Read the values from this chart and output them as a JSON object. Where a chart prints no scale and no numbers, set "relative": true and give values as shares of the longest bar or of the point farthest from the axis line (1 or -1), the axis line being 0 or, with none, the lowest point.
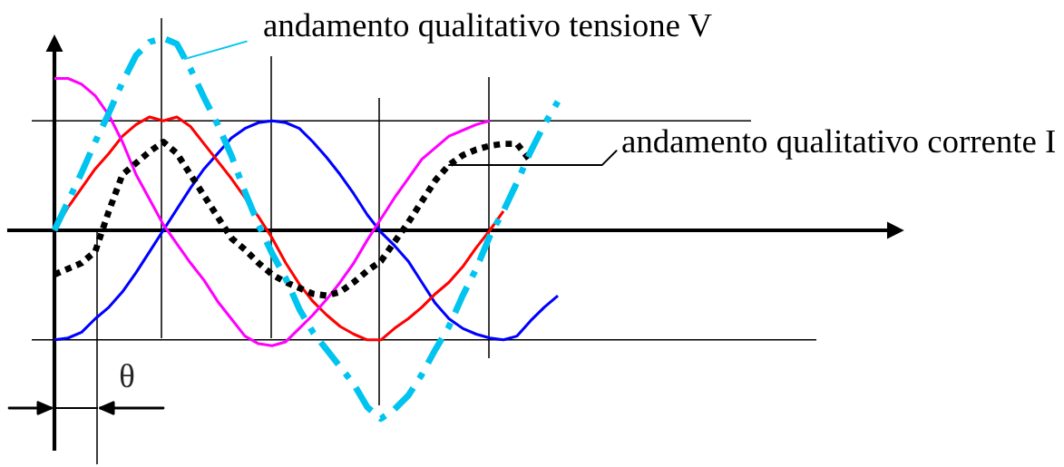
{
  "chart_data": {
    "type": "line",
    "relative": true,
    "grid": "x",
    "legend": "top right",
    "categories": [
      null,
      null,
      null,
      null,
      null,
      null,
      null,
      null,
      null,
      null,
      null,
      null,
      null,
      null,
      null,
      null,
      null,
      null,
      null,
      null,
      null,
      null,
      null,
      null,
      null,
      null,
      null,
      null,
      null,
      null,
      null,
      null,
      null,
      null,
      null,
      null,
      null,
      null
    ],
    "series": [
      {
        "color": "#0000ff",
        "line_style": "solid",
        "values": [
          -0.57,
          -0.56,
          -0.53,
          -0.46,
          -0.4,
          -0.32,
          -0.22,
          -0.11,
          0,
          0.11,
          0.22,
          0.32,
          0.4,
          0.48,
          0.53,
          0.56,
          0.57,
          0.56,
          0.53,
          0.46,
          0.38,
          0.29,
          0.19,
          0.08,
          -0.01,
          -0.08,
          -0.16,
          -0.27,
          -0.38,
          -0.46,
          -0.51,
          -0.54,
          -0.56,
          -0.57,
          -0.55,
          -0.47,
          -0.4,
          -0.34
        ]
      },
      {
        "color": "#ff0000",
        "line_style": "solid",
        "values": [
          0,
          0.12,
          0.22,
          0.32,
          0.4,
          0.49,
          0.55,
          0.59,
          0.57,
          0.59,
          0.54,
          0.45,
          0.36,
          0.27,
          0.17,
          0.07,
          -0.04,
          -0.17,
          -0.28,
          -0.37,
          -0.44,
          -0.5,
          -0.54,
          -0.57,
          -0.57,
          -0.51,
          -0.46,
          -0.4,
          -0.33,
          -0.27,
          -0.19,
          -0.09,
          0.0,
          0.1,
          null,
          null,
          null,
          null
        ]
      },
      {
        "color": "#ff00ff",
        "line_style": "solid",
        "values": [
          0.79,
          0.79,
          0.76,
          0.7,
          0.6,
          0.46,
          0.29,
          0.16,
          0.03,
          -0.07,
          -0.17,
          -0.26,
          -0.37,
          -0.46,
          -0.55,
          -0.59,
          -0.6,
          -0.58,
          -0.51,
          -0.44,
          -0.36,
          -0.27,
          -0.17,
          -0.05,
          0.06,
          0.17,
          0.27,
          0.37,
          0.43,
          0.49,
          0.52,
          0.55,
          0.57,
          null,
          null,
          null,
          null,
          null
        ]
      },
      {
        "name": "andamento qualitativo corrente I",
        "color": "#000000",
        "line_style": "dotted",
        "values": [
          -0.23,
          -0.2,
          -0.17,
          -0.11,
          0.1,
          0.29,
          0.35,
          0.41,
          0.46,
          0.4,
          0.29,
          0.18,
          0.07,
          -0.04,
          -0.1,
          -0.17,
          -0.23,
          -0.27,
          -0.3,
          -0.33,
          -0.34,
          -0.32,
          -0.27,
          -0.21,
          -0.16,
          -0.06,
          0.04,
          0.15,
          0.26,
          0.34,
          0.39,
          0.42,
          0.44,
          0.45,
          0.45,
          0.36,
          null,
          null
        ]
      },
      {
        "name": "andamento qualitativo tensione V",
        "color": "#00c4f0",
        "line_style": "dashdot",
        "values": [
          0,
          0.15,
          0.3,
          0.46,
          0.61,
          0.77,
          0.91,
          0.98,
          1.0,
          0.97,
          0.84,
          0.69,
          0.55,
          0.39,
          0.2,
          0.03,
          -0.12,
          -0.25,
          -0.41,
          -0.53,
          -0.62,
          -0.71,
          -0.8,
          -0.92,
          -0.98,
          -0.93,
          -0.86,
          -0.75,
          -0.62,
          -0.5,
          -0.34,
          -0.2,
          -0.03,
          0.1,
          0.25,
          0.41,
          0.55,
          0.67
        ]
      }
    ],
    "ref_lines": [
      {
        "axis": "y",
        "value": 0.57
      },
      {
        "axis": "y",
        "value": -0.57
      }
    ],
    "annotations": [
      "θ"
    ]
  }
}
